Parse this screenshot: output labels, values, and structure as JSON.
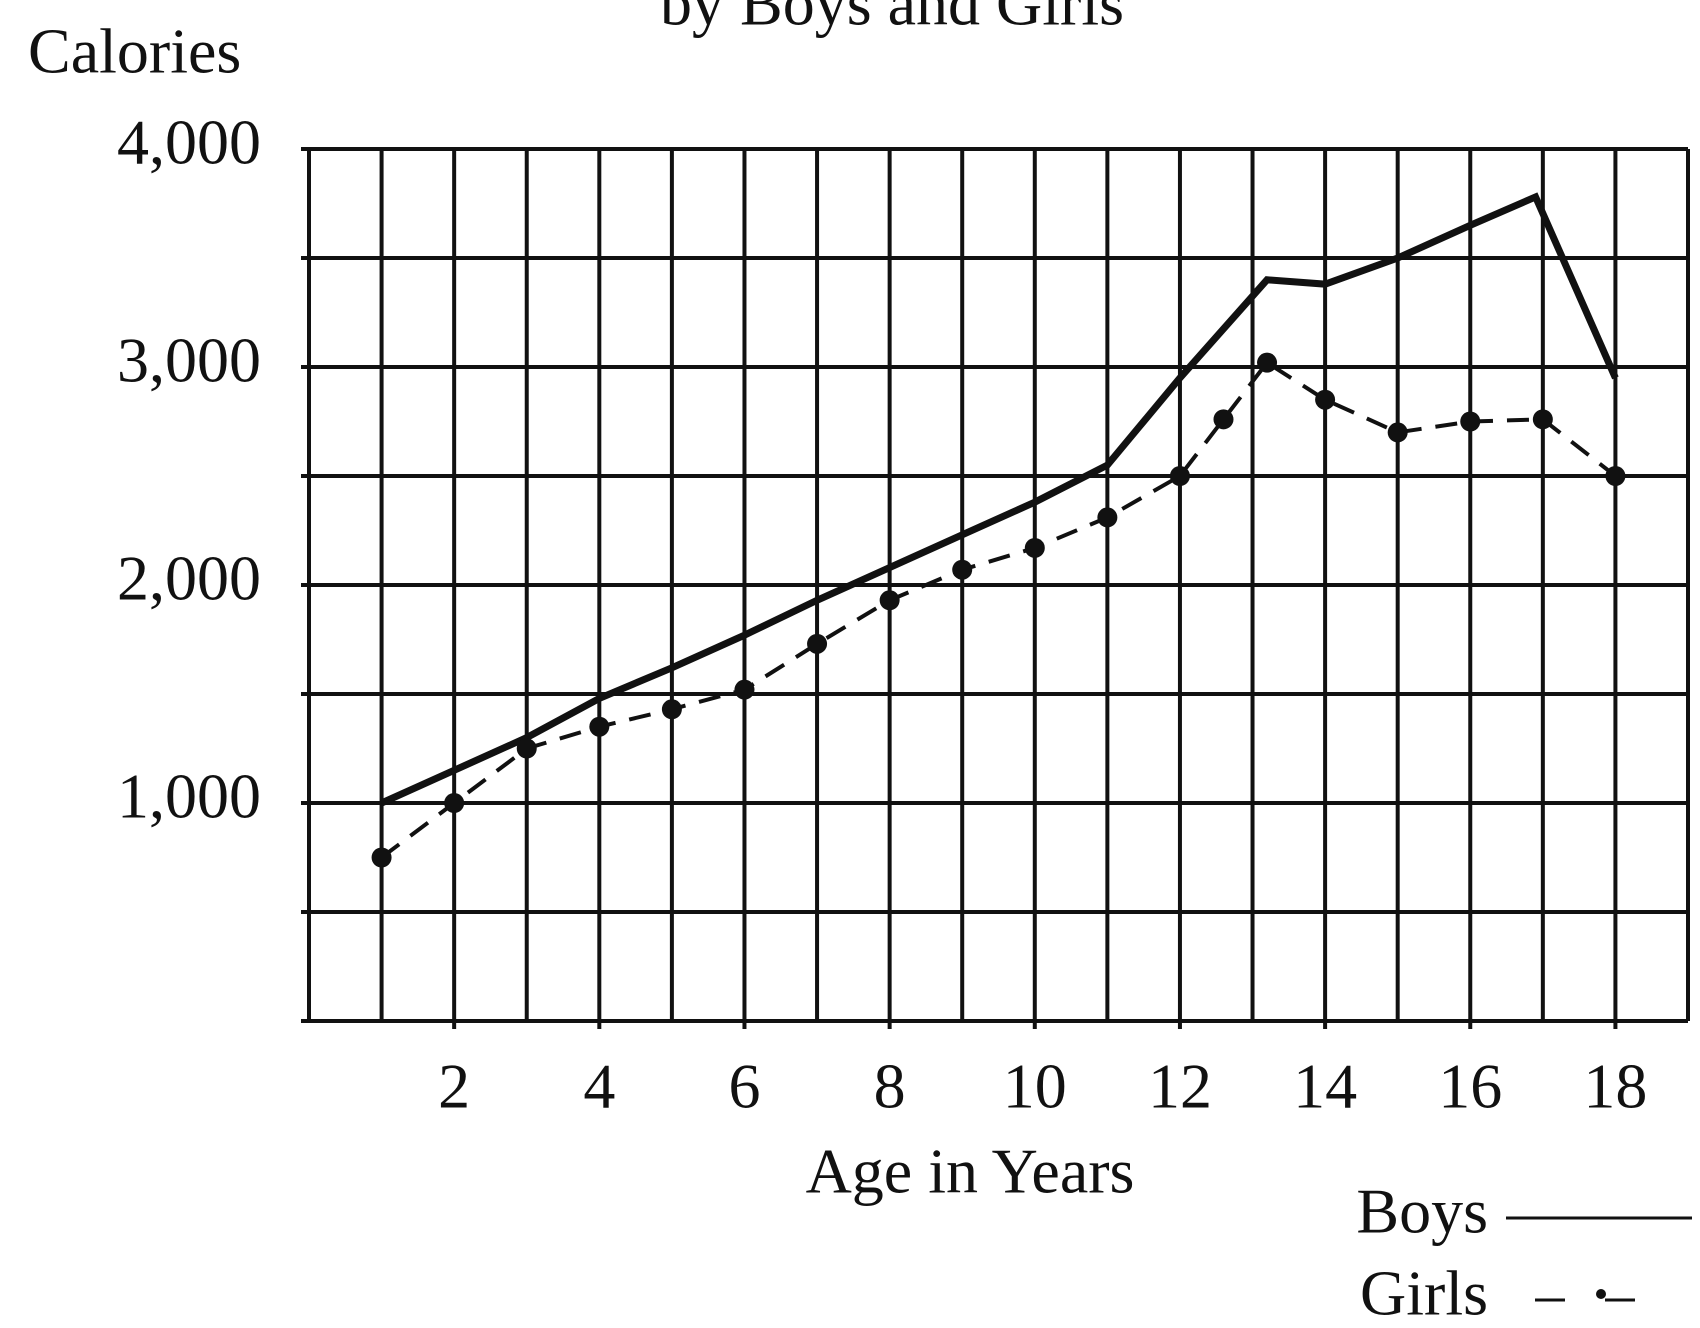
{
  "chart_data": {
    "type": "line",
    "title": "by Boys and Girls",
    "y_label": "Calories",
    "x_label": "Age in Years",
    "series": [
      {
        "name": "Boys",
        "color": "#111111",
        "style": "solid",
        "x": [
          1,
          2,
          3,
          4,
          5,
          6,
          7,
          8,
          9,
          10,
          11,
          12,
          13.2,
          14,
          15,
          16,
          16.9,
          18
        ],
        "values": [
          1000,
          1150,
          1300,
          1480,
          1620,
          1770,
          1930,
          2080,
          2230,
          2380,
          2550,
          2950,
          3400,
          3380,
          3500,
          3650,
          3780,
          2950
        ]
      },
      {
        "name": "Girls",
        "color": "#111111",
        "style": "dash-dot",
        "x": [
          1,
          2,
          3,
          4,
          5,
          6,
          7,
          8,
          9,
          10,
          11,
          12,
          12.6,
          13.2,
          14,
          15,
          16,
          17,
          18
        ],
        "values": [
          750,
          1000,
          1250,
          1350,
          1430,
          1520,
          1730,
          1930,
          2070,
          2170,
          2310,
          2500,
          2760,
          3020,
          2850,
          2700,
          2750,
          2760,
          2500
        ]
      }
    ],
    "xlim": [
      0,
      19
    ],
    "ylim": [
      0,
      4000
    ],
    "xticks": [
      2,
      4,
      6,
      8,
      10,
      12,
      14,
      16,
      18
    ],
    "yticks": [
      {
        "value": 1000,
        "label": "1,000"
      },
      {
        "value": 2000,
        "label": "2,000"
      },
      {
        "value": 3000,
        "label": "3,000"
      },
      {
        "value": 4000,
        "label": "4,000"
      }
    ],
    "x_minor_ticks": [
      0,
      1,
      3,
      5,
      7,
      9,
      11,
      13,
      15,
      17,
      19
    ],
    "y_minor_ticks": [
      0,
      500,
      1500,
      2500,
      3500
    ],
    "grid": true,
    "legend": "lower right"
  }
}
